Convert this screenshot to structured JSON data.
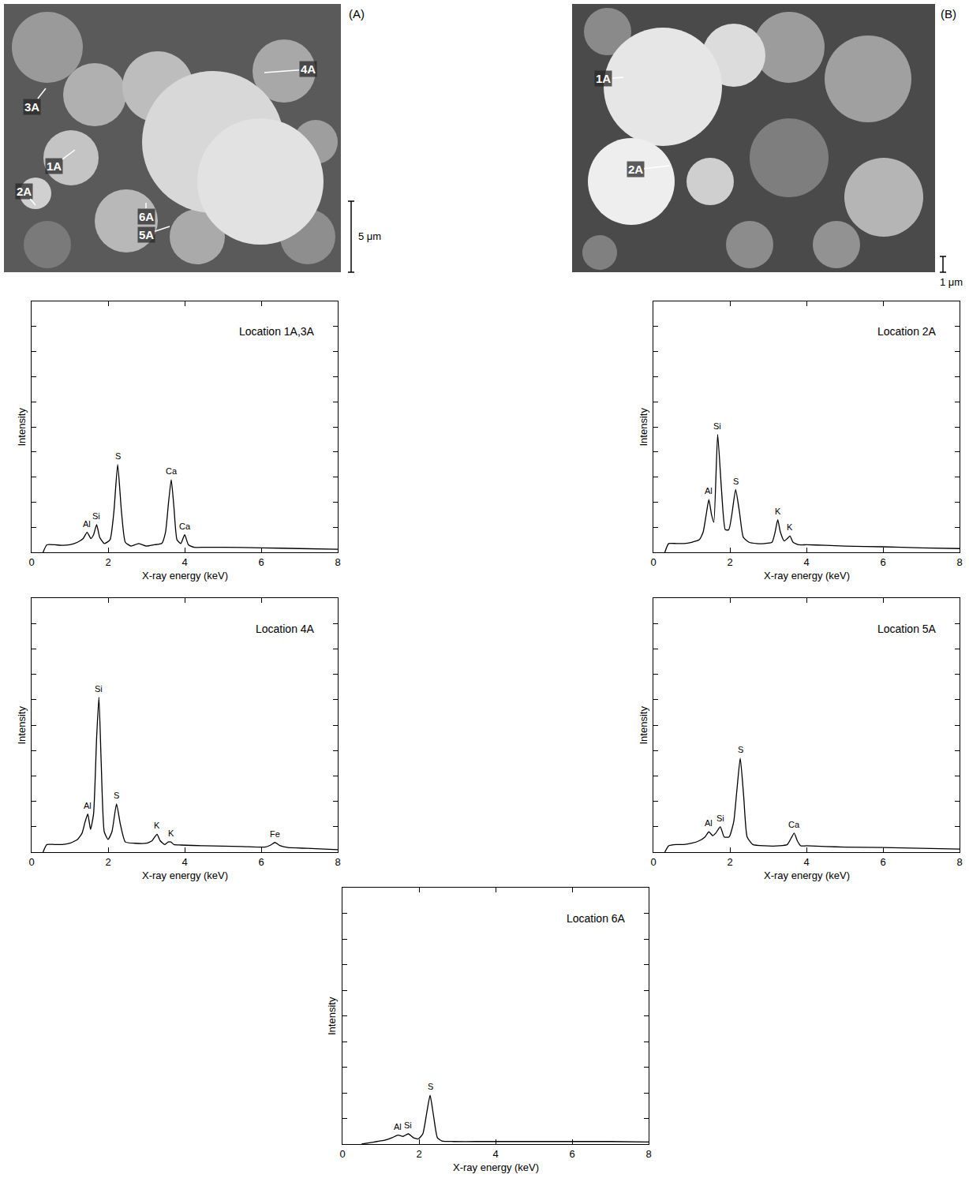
{
  "micrographs": [
    {
      "panel": "(A)",
      "scale_bar": "5 μm",
      "points": [
        "3A",
        "1A",
        "2A",
        "4A",
        "6A",
        "5A"
      ]
    },
    {
      "panel": "(B)",
      "scale_bar": "1 μm",
      "points": [
        "1A",
        "2A"
      ]
    }
  ],
  "chart_data": [
    {
      "type": "line",
      "title": "Location 1A,3A",
      "xlabel": "X-ray energy (keV)",
      "ylabel": "Intensity",
      "color": "#000000",
      "grid": false,
      "tick_labels": "x",
      "xlim": [
        0,
        8
      ],
      "xticks": [
        0,
        2,
        4,
        6,
        8
      ],
      "ylim": [
        0,
        10
      ],
      "yticks": [
        0,
        1,
        2,
        3,
        4,
        5,
        6,
        7,
        8,
        9,
        10
      ],
      "x": [
        0.3,
        0.4,
        0.6,
        0.8,
        1.0,
        1.2,
        1.35,
        1.45,
        1.55,
        1.62,
        1.7,
        1.78,
        1.9,
        2.05,
        2.15,
        2.25,
        2.35,
        2.45,
        2.6,
        2.8,
        3.0,
        3.2,
        3.4,
        3.5,
        3.58,
        3.65,
        3.72,
        3.8,
        3.9,
        4.0,
        4.1,
        4.25,
        4.5,
        5,
        6,
        7,
        8
      ],
      "values": [
        0,
        0.3,
        0.3,
        0.28,
        0.3,
        0.4,
        0.55,
        0.8,
        0.55,
        0.7,
        1.1,
        0.6,
        0.35,
        0.5,
        1.6,
        3.5,
        1.6,
        0.4,
        0.25,
        0.35,
        0.25,
        0.3,
        0.35,
        0.8,
        2.0,
        2.9,
        1.8,
        0.5,
        0.35,
        0.7,
        0.3,
        0.2,
        0.2,
        0.2,
        0.18,
        0.15,
        0.12
      ],
      "annotations": [
        {
          "text": "Al",
          "x": 1.45,
          "y": 0.8
        },
        {
          "text": "Si",
          "x": 1.7,
          "y": 1.1
        },
        {
          "text": "S",
          "x": 2.25,
          "y": 3.5
        },
        {
          "text": "Ca",
          "x": 3.65,
          "y": 2.9
        },
        {
          "text": "Ca",
          "x": 4.0,
          "y": 0.7
        }
      ]
    },
    {
      "type": "line",
      "title": "Location 2A",
      "xlabel": "X-ray energy (keV)",
      "ylabel": "Intensity",
      "color": "#000000",
      "grid": false,
      "tick_labels": "x",
      "xlim": [
        0,
        8
      ],
      "xticks": [
        0,
        2,
        4,
        6,
        8
      ],
      "ylim": [
        0,
        10
      ],
      "yticks": [
        0,
        1,
        2,
        3,
        4,
        5,
        6,
        7,
        8,
        9,
        10
      ],
      "x": [
        0.3,
        0.4,
        0.6,
        0.8,
        1.0,
        1.2,
        1.3,
        1.38,
        1.45,
        1.52,
        1.58,
        1.68,
        1.78,
        1.88,
        1.97,
        2.05,
        2.15,
        2.25,
        2.35,
        2.5,
        2.7,
        2.9,
        3.1,
        3.18,
        3.25,
        3.32,
        3.42,
        3.5,
        3.57,
        3.65,
        3.8,
        4.0,
        4.5,
        5,
        6,
        7,
        8
      ],
      "values": [
        0,
        0.35,
        0.35,
        0.35,
        0.4,
        0.5,
        0.8,
        1.5,
        2.1,
        1.5,
        1.2,
        4.7,
        2.5,
        0.9,
        0.9,
        1.5,
        2.5,
        1.6,
        0.6,
        0.4,
        0.35,
        0.35,
        0.4,
        0.8,
        1.3,
        0.8,
        0.45,
        0.55,
        0.65,
        0.4,
        0.3,
        0.3,
        0.28,
        0.25,
        0.22,
        0.18,
        0.15
      ],
      "annotations": [
        {
          "text": "Al",
          "x": 1.45,
          "y": 2.1
        },
        {
          "text": "Si",
          "x": 1.68,
          "y": 4.7
        },
        {
          "text": "S",
          "x": 2.15,
          "y": 2.5
        },
        {
          "text": "K",
          "x": 3.25,
          "y": 1.3
        },
        {
          "text": "K",
          "x": 3.57,
          "y": 0.65
        }
      ]
    },
    {
      "type": "line",
      "title": "Location 4A",
      "xlabel": "X-ray energy (keV)",
      "ylabel": "Intensity",
      "color": "#000000",
      "grid": false,
      "tick_labels": "x",
      "xlim": [
        0,
        8
      ],
      "xticks": [
        0,
        2,
        4,
        6,
        8
      ],
      "ylim": [
        0,
        10
      ],
      "yticks": [
        0,
        1,
        2,
        3,
        4,
        5,
        6,
        7,
        8,
        9,
        10
      ],
      "x": [
        0.3,
        0.4,
        0.6,
        0.8,
        1.0,
        1.2,
        1.32,
        1.4,
        1.47,
        1.54,
        1.62,
        1.7,
        1.76,
        1.82,
        1.9,
        2.0,
        2.1,
        2.22,
        2.32,
        2.45,
        2.7,
        3.0,
        3.15,
        3.22,
        3.28,
        3.36,
        3.48,
        3.57,
        3.64,
        3.72,
        3.9,
        4.5,
        5.5,
        6.1,
        6.25,
        6.36,
        6.5,
        6.7,
        7.2,
        8
      ],
      "values": [
        0,
        0.3,
        0.3,
        0.3,
        0.35,
        0.5,
        0.75,
        1.2,
        1.5,
        0.9,
        1.5,
        4.5,
        6.1,
        3.5,
        0.8,
        0.5,
        0.8,
        1.9,
        1.1,
        0.4,
        0.35,
        0.35,
        0.45,
        0.6,
        0.7,
        0.45,
        0.3,
        0.4,
        0.4,
        0.3,
        0.28,
        0.25,
        0.22,
        0.2,
        0.28,
        0.38,
        0.25,
        0.18,
        0.15,
        0.1
      ],
      "annotations": [
        {
          "text": "Al",
          "x": 1.47,
          "y": 1.5
        },
        {
          "text": "Si",
          "x": 1.76,
          "y": 6.1
        },
        {
          "text": "S",
          "x": 2.22,
          "y": 1.9
        },
        {
          "text": "K",
          "x": 3.28,
          "y": 0.7
        },
        {
          "text": "K",
          "x": 3.64,
          "y": 0.4
        },
        {
          "text": "Fe",
          "x": 6.36,
          "y": 0.38
        }
      ]
    },
    {
      "type": "line",
      "title": "Location 5A",
      "xlabel": "X-ray energy (keV)",
      "ylabel": "Intensity",
      "color": "#000000",
      "grid": false,
      "tick_labels": "x",
      "xlim": [
        0,
        8
      ],
      "xticks": [
        0,
        2,
        4,
        6,
        8
      ],
      "ylim": [
        0,
        10
      ],
      "yticks": [
        0,
        1,
        2,
        3,
        4,
        5,
        6,
        7,
        8,
        9,
        10
      ],
      "x": [
        0.3,
        0.4,
        0.6,
        0.8,
        1.0,
        1.2,
        1.35,
        1.45,
        1.55,
        1.63,
        1.75,
        1.85,
        1.98,
        2.1,
        2.18,
        2.27,
        2.36,
        2.45,
        2.6,
        2.9,
        3.3,
        3.5,
        3.6,
        3.68,
        3.76,
        3.85,
        4.0,
        4.5,
        5,
        6,
        7,
        8
      ],
      "values": [
        0,
        0.25,
        0.3,
        0.3,
        0.35,
        0.45,
        0.6,
        0.8,
        0.65,
        0.75,
        1.0,
        0.6,
        0.6,
        1.2,
        2.4,
        3.7,
        2.2,
        0.6,
        0.3,
        0.25,
        0.25,
        0.3,
        0.55,
        0.75,
        0.45,
        0.25,
        0.25,
        0.22,
        0.2,
        0.18,
        0.15,
        0.12
      ],
      "annotations": [
        {
          "text": "Al",
          "x": 1.45,
          "y": 0.8
        },
        {
          "text": "Si",
          "x": 1.75,
          "y": 1.0
        },
        {
          "text": "S",
          "x": 2.27,
          "y": 3.7
        },
        {
          "text": "Ca",
          "x": 3.68,
          "y": 0.75
        }
      ]
    },
    {
      "type": "line",
      "title": "Location 6A",
      "xlabel": "X-ray energy (keV)",
      "ylabel": "Intensity",
      "color": "#000000",
      "grid": false,
      "tick_labels": "x",
      "xlim": [
        0,
        8
      ],
      "xticks": [
        0,
        2,
        4,
        6,
        8
      ],
      "ylim": [
        0,
        10
      ],
      "yticks": [
        0,
        1,
        2,
        3,
        4,
        5,
        6,
        7,
        8,
        9,
        10
      ],
      "x": [
        0.5,
        0.7,
        0.9,
        1.1,
        1.3,
        1.45,
        1.58,
        1.72,
        1.85,
        1.98,
        2.1,
        2.2,
        2.29,
        2.38,
        2.48,
        2.6,
        2.9,
        3.5,
        4,
        5,
        6,
        7,
        8
      ],
      "values": [
        0,
        0.05,
        0.1,
        0.15,
        0.25,
        0.35,
        0.3,
        0.4,
        0.25,
        0.2,
        0.4,
        1.2,
        1.9,
        1.1,
        0.25,
        0.12,
        0.1,
        0.1,
        0.1,
        0.1,
        0.1,
        0.1,
        0.08
      ],
      "annotations": [
        {
          "text": "Al",
          "x": 1.45,
          "y": 0.35
        },
        {
          "text": "Si",
          "x": 1.72,
          "y": 0.4
        },
        {
          "text": "S",
          "x": 2.29,
          "y": 1.9
        }
      ]
    }
  ]
}
